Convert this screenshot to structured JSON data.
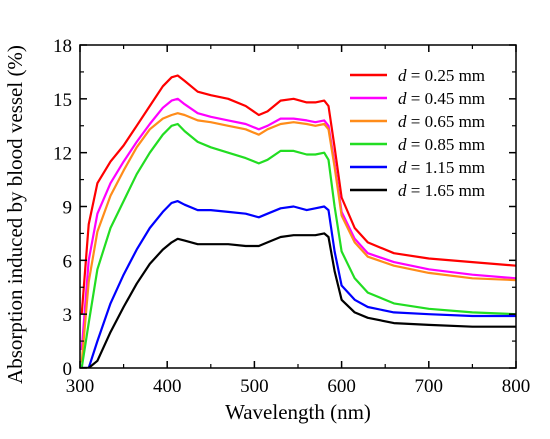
{
  "chart_data": {
    "type": "line",
    "xlabel": "Wavelength (nm)",
    "ylabel": "Absorption induced by blood vessel (%)",
    "xlim": [
      300,
      800
    ],
    "ylim": [
      0,
      18
    ],
    "xticks": [
      300,
      400,
      500,
      600,
      700,
      800
    ],
    "yticks": [
      0,
      3,
      6,
      9,
      12,
      15,
      18
    ],
    "grid": false,
    "legend_position": "top-right",
    "series": [
      {
        "name_var": "d",
        "name_rest": " = 0.25 mm",
        "color": "#ff0000",
        "x": [
          302,
          310,
          320,
          335,
          350,
          365,
          380,
          395,
          405,
          412,
          420,
          435,
          450,
          470,
          490,
          505,
          515,
          530,
          545,
          560,
          570,
          580,
          585,
          592,
          600,
          615,
          630,
          660,
          700,
          750,
          800
        ],
        "y": [
          3.0,
          8.0,
          10.3,
          11.5,
          12.4,
          13.5,
          14.6,
          15.7,
          16.2,
          16.3,
          16.0,
          15.4,
          15.2,
          15.0,
          14.6,
          14.1,
          14.3,
          14.9,
          15.0,
          14.8,
          14.8,
          14.9,
          14.6,
          12.3,
          9.5,
          7.8,
          7.0,
          6.4,
          6.1,
          5.9,
          5.7
        ]
      },
      {
        "name_var": "d",
        "name_rest": " = 0.45 mm",
        "color": "#ff00ff",
        "x": [
          302,
          310,
          320,
          335,
          350,
          365,
          380,
          395,
          405,
          412,
          420,
          435,
          450,
          470,
          490,
          505,
          515,
          530,
          545,
          560,
          570,
          580,
          585,
          592,
          600,
          615,
          630,
          660,
          700,
          750,
          800
        ],
        "y": [
          1.0,
          6.0,
          8.6,
          10.3,
          11.5,
          12.6,
          13.6,
          14.5,
          14.9,
          15.0,
          14.7,
          14.2,
          14.0,
          13.8,
          13.6,
          13.3,
          13.5,
          13.9,
          13.9,
          13.8,
          13.7,
          13.8,
          13.5,
          11.4,
          8.7,
          7.2,
          6.4,
          5.9,
          5.5,
          5.2,
          5.0
        ]
      },
      {
        "name_var": "d",
        "name_rest": " = 0.65 mm",
        "color": "#ff8c1a",
        "x": [
          302,
          310,
          320,
          335,
          350,
          365,
          380,
          395,
          405,
          412,
          420,
          435,
          450,
          470,
          490,
          505,
          515,
          530,
          545,
          560,
          570,
          580,
          585,
          592,
          600,
          615,
          630,
          660,
          700,
          750,
          800
        ],
        "y": [
          0.3,
          4.8,
          7.6,
          9.6,
          11.0,
          12.3,
          13.3,
          13.9,
          14.1,
          14.2,
          14.1,
          13.8,
          13.7,
          13.5,
          13.3,
          13.0,
          13.3,
          13.6,
          13.7,
          13.6,
          13.5,
          13.6,
          13.3,
          11.2,
          8.5,
          7.0,
          6.2,
          5.7,
          5.3,
          5.0,
          4.9
        ]
      },
      {
        "name_var": "d",
        "name_rest": " = 0.85 mm",
        "color": "#22dd22",
        "x": [
          302,
          310,
          320,
          335,
          350,
          365,
          380,
          395,
          405,
          412,
          420,
          435,
          450,
          470,
          490,
          505,
          515,
          530,
          545,
          560,
          570,
          580,
          585,
          592,
          600,
          615,
          630,
          660,
          700,
          750,
          800
        ],
        "y": [
          0.0,
          2.5,
          5.5,
          7.8,
          9.3,
          10.8,
          12.0,
          13.0,
          13.5,
          13.6,
          13.2,
          12.6,
          12.3,
          12.0,
          11.7,
          11.4,
          11.6,
          12.1,
          12.1,
          11.9,
          11.9,
          12.0,
          11.6,
          9.0,
          6.5,
          5.0,
          4.2,
          3.6,
          3.3,
          3.1,
          3.0
        ]
      },
      {
        "name_var": "d",
        "name_rest": " = 1.15 mm",
        "color": "#0000ff",
        "x": [
          302,
          310,
          320,
          335,
          350,
          365,
          380,
          395,
          405,
          412,
          420,
          435,
          450,
          470,
          490,
          505,
          515,
          530,
          545,
          560,
          570,
          580,
          585,
          592,
          600,
          615,
          630,
          660,
          700,
          750,
          800
        ],
        "y": [
          0.0,
          0.0,
          1.5,
          3.6,
          5.2,
          6.6,
          7.8,
          8.7,
          9.2,
          9.3,
          9.1,
          8.8,
          8.8,
          8.7,
          8.6,
          8.4,
          8.6,
          8.9,
          9.0,
          8.8,
          8.9,
          9.0,
          8.8,
          6.5,
          4.6,
          3.8,
          3.4,
          3.1,
          3.0,
          2.9,
          2.9
        ]
      },
      {
        "name_var": "d",
        "name_rest": " = 1.65 mm",
        "color": "#000000",
        "x": [
          302,
          310,
          320,
          335,
          350,
          365,
          380,
          395,
          405,
          412,
          420,
          435,
          450,
          470,
          490,
          505,
          515,
          530,
          545,
          560,
          570,
          580,
          585,
          592,
          600,
          615,
          630,
          660,
          700,
          750,
          800
        ],
        "y": [
          0.0,
          0.0,
          0.4,
          2.0,
          3.4,
          4.7,
          5.8,
          6.6,
          7.0,
          7.2,
          7.1,
          6.9,
          6.9,
          6.9,
          6.8,
          6.8,
          7.0,
          7.3,
          7.4,
          7.4,
          7.4,
          7.5,
          7.3,
          5.4,
          3.8,
          3.1,
          2.8,
          2.5,
          2.4,
          2.3,
          2.3
        ]
      }
    ]
  }
}
